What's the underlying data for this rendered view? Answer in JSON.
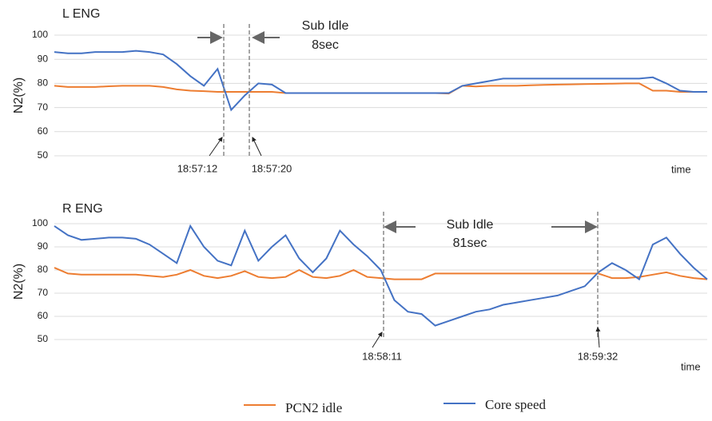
{
  "chart_data": [
    {
      "type": "line",
      "title": "L ENG",
      "ylabel": "N2(%)",
      "xlabel": "time",
      "ylim": [
        50,
        100
      ],
      "yticks": [
        50,
        60,
        70,
        80,
        90,
        100
      ],
      "grid": true,
      "series": [
        {
          "color": "#ed7d31",
          "values": [
            79,
            78.5,
            78.5,
            78.5,
            78.8,
            79,
            79,
            79,
            78.5,
            77.5,
            77,
            76.8,
            76.5,
            76.5,
            76.5,
            76.5,
            76.5,
            76,
            76,
            76,
            76,
            76,
            76,
            76,
            76,
            76,
            76,
            76,
            76,
            75.8,
            79,
            78.7,
            79,
            79,
            79,
            79.2,
            79.4,
            79.5,
            79.6,
            79.7,
            79.8,
            79.9,
            80,
            80,
            77,
            77,
            76.5,
            76.5,
            76.5
          ]
        },
        {
          "color": "#4472c4",
          "values": [
            93,
            92.5,
            92.5,
            93,
            93,
            93,
            93.5,
            93,
            92,
            88,
            83,
            79,
            86,
            69,
            75,
            80,
            79.5,
            76,
            76,
            76,
            76,
            76,
            76,
            76,
            76,
            76,
            76,
            76,
            76,
            76,
            79,
            80,
            81,
            82,
            82,
            82,
            82,
            82,
            82,
            82,
            82,
            82,
            82,
            82,
            82.5,
            80,
            77,
            76.5,
            76.5
          ]
        }
      ],
      "span_label": [
        "Sub Idle",
        "8sec"
      ],
      "markers": [
        "18:57:12",
        "18:57:20"
      ]
    },
    {
      "type": "line",
      "title": "R ENG",
      "ylabel": "N2(%)",
      "xlabel": "time",
      "ylim": [
        50,
        100
      ],
      "yticks": [
        50,
        60,
        70,
        80,
        90,
        100
      ],
      "grid": true,
      "series": [
        {
          "name": "PCN2 idle",
          "color": "#ed7d31",
          "values": [
            81,
            78.5,
            78,
            78,
            78,
            78,
            78,
            77.5,
            77,
            78,
            80,
            77.5,
            76.5,
            77.5,
            79.5,
            77,
            76.5,
            77,
            80,
            77,
            76.5,
            77.5,
            80,
            77,
            76.5,
            76,
            76,
            76,
            78.5,
            78.5,
            78.5,
            78.5,
            78.5,
            78.5,
            78.5,
            78.5,
            78.5,
            78.5,
            78.5,
            78.5,
            78.5,
            76.5,
            76.5,
            77,
            78,
            79,
            77.5,
            76.5,
            76
          ]
        },
        {
          "name": "Core speed",
          "color": "#4472c4",
          "values": [
            99,
            95,
            93,
            93.5,
            94,
            94,
            93.5,
            91,
            87,
            83,
            99,
            90,
            84,
            82,
            97,
            84,
            90,
            95,
            85,
            79,
            85,
            97,
            91,
            86,
            80,
            67,
            62,
            61,
            56,
            58,
            60,
            62,
            63,
            65,
            66,
            67,
            68,
            69,
            71,
            73,
            79,
            83,
            80,
            76,
            91,
            94,
            87,
            81,
            76
          ]
        }
      ],
      "span_label": [
        "Sub Idle",
        "81sec"
      ],
      "markers": [
        "18:58:11",
        "18:59:32"
      ]
    }
  ]
}
